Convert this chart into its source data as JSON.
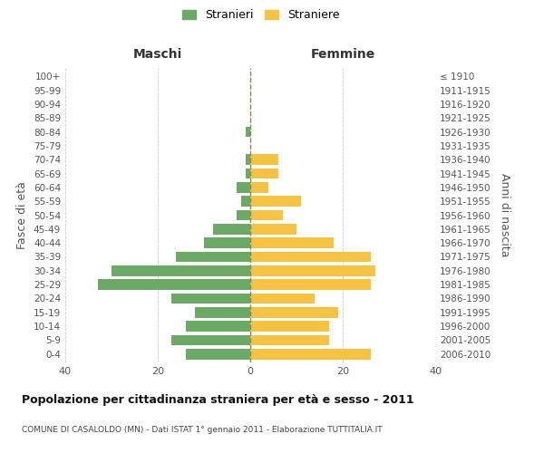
{
  "age_groups": [
    "100+",
    "95-99",
    "90-94",
    "85-89",
    "80-84",
    "75-79",
    "70-74",
    "65-69",
    "60-64",
    "55-59",
    "50-54",
    "45-49",
    "40-44",
    "35-39",
    "30-34",
    "25-29",
    "20-24",
    "15-19",
    "10-14",
    "5-9",
    "0-4"
  ],
  "birth_years": [
    "≤ 1910",
    "1911-1915",
    "1916-1920",
    "1921-1925",
    "1926-1930",
    "1931-1935",
    "1936-1940",
    "1941-1945",
    "1946-1950",
    "1951-1955",
    "1956-1960",
    "1961-1965",
    "1966-1970",
    "1971-1975",
    "1976-1980",
    "1981-1985",
    "1986-1990",
    "1991-1995",
    "1996-2000",
    "2001-2005",
    "2006-2010"
  ],
  "males": [
    0,
    0,
    0,
    0,
    1,
    0,
    1,
    1,
    3,
    2,
    3,
    8,
    10,
    16,
    30,
    33,
    17,
    12,
    14,
    17,
    14
  ],
  "females": [
    0,
    0,
    0,
    0,
    0,
    0,
    6,
    6,
    4,
    11,
    7,
    10,
    18,
    26,
    27,
    26,
    14,
    19,
    17,
    17,
    26
  ],
  "male_color": "#6aaa64",
  "female_color": "#f5c242",
  "title": "Popolazione per cittadinanza straniera per età e sesso - 2011",
  "subtitle": "COMUNE DI CASALOLDO (MN) - Dati ISTAT 1° gennaio 2011 - Elaborazione TUTTITALIA.IT",
  "ylabel_left": "Fasce di età",
  "ylabel_right": "Anni di nascita",
  "xlabel_maschi": "Maschi",
  "xlabel_femmine": "Femmine",
  "legend_males": "Stranieri",
  "legend_females": "Straniere",
  "xlim": 40,
  "background_color": "#ffffff",
  "grid_color": "#cccccc"
}
